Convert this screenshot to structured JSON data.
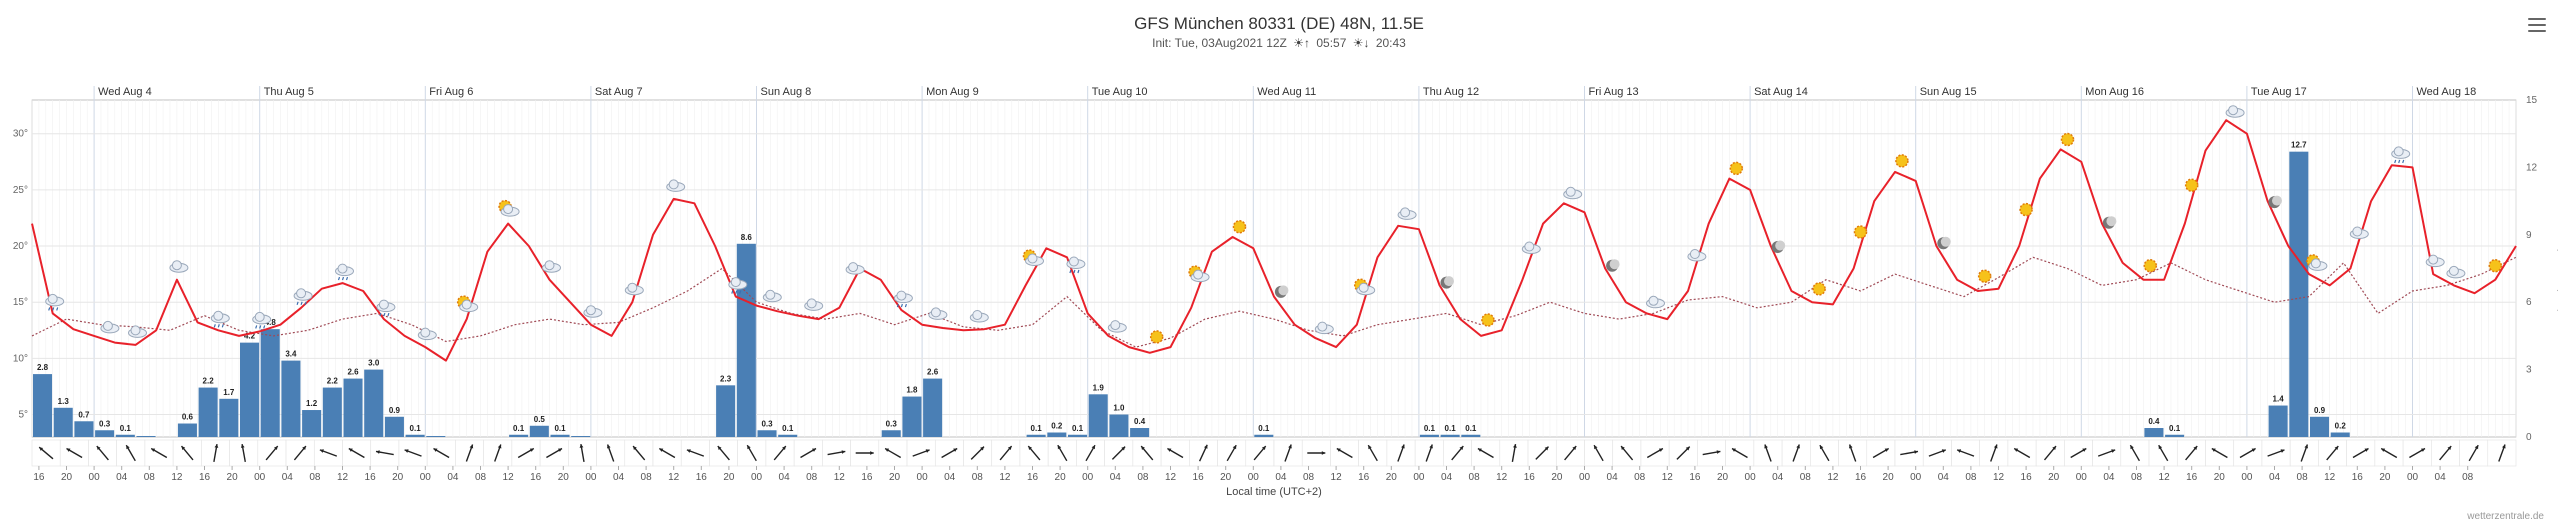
{
  "header": {
    "title": "GFS München 80331 (DE) 48N, 11.5E",
    "init_label": "Init: Tue, 03Aug2021 12Z",
    "sunrise": "05:57",
    "sunset": "20:43"
  },
  "credit": "wetterzentrale.de",
  "colors": {
    "temp": "#e8212a",
    "dewpoint": "#a04a55",
    "bar": "#4a7fb5",
    "grid": "#e6e6e6",
    "axis": "#999999"
  },
  "chart_data": {
    "type": "bar+line",
    "title": "GFS München 80331 (DE) 48N, 11.5E",
    "xlabel": "Local time (UTC+2)",
    "ylabel_right": "Precipitation (mm)",
    "temp_axis": {
      "min": 3,
      "max": 33,
      "ticks": [
        5,
        10,
        15,
        20,
        25,
        30
      ],
      "tick_labels": [
        "5°",
        "10°",
        "15°",
        "20°",
        "25°",
        "30°"
      ]
    },
    "precip_axis": {
      "min": 0,
      "max": 15,
      "ticks": [
        0,
        3,
        6,
        9,
        12,
        15
      ],
      "tick_labels": [
        "0",
        "3",
        "6",
        "9",
        "12",
        "15"
      ]
    },
    "x_start_hour": 15,
    "x_end_hour": 363,
    "hour_tick_labels": [
      "16",
      "20",
      "00",
      "04",
      "08",
      "12",
      "16",
      "20",
      "00",
      "04",
      "08",
      "12",
      "16",
      "20",
      "00",
      "04",
      "08",
      "12",
      "16",
      "20",
      "00",
      "04",
      "08",
      "12",
      "16",
      "20",
      "00",
      "04",
      "08",
      "12",
      "16",
      "20",
      "00",
      "04",
      "08",
      "12",
      "16",
      "20",
      "00",
      "04",
      "08",
      "12",
      "16",
      "20",
      "00",
      "04",
      "08",
      "12",
      "16",
      "20",
      "00",
      "04",
      "08",
      "12",
      "16",
      "20",
      "00",
      "04",
      "08",
      "12",
      "16",
      "20",
      "00",
      "04",
      "08",
      "12",
      "16",
      "20",
      "00",
      "04",
      "08",
      "12",
      "16",
      "20",
      "00",
      "04",
      "08",
      "12",
      "16",
      "20",
      "00",
      "04",
      "08",
      "12",
      "16",
      "20",
      "00",
      "04",
      "08"
    ],
    "day_labels": [
      "Wed Aug 4",
      "Thu Aug 5",
      "Fri Aug 6",
      "Sat Aug 7",
      "Sun Aug 8",
      "Mon Aug 9",
      "Tue Aug 10",
      "Wed Aug 11",
      "Thu Aug 12",
      "Fri Aug 13",
      "Sat Aug 14",
      "Sun Aug 15",
      "Mon Aug 16",
      "Tue Aug 17",
      "Wed Aug 18"
    ],
    "precip_labels": [
      {
        "h": 18,
        "v": 2.8,
        "label": "2.8"
      },
      {
        "h": 21,
        "v": 1.3,
        "label": "1.3"
      },
      {
        "h": 24,
        "v": 0.7,
        "label": "0.7"
      },
      {
        "h": 27,
        "v": 0.3,
        "label": "0.3"
      },
      {
        "h": 30,
        "v": 0.1,
        "label": "0.1"
      },
      {
        "h": 39,
        "v": 0.6,
        "label": "0.6"
      },
      {
        "h": 42,
        "v": 2.2,
        "label": "2.2"
      },
      {
        "h": 45,
        "v": 1.7,
        "label": "1.7"
      },
      {
        "h": 48,
        "v": 4.2,
        "label": "4.2"
      },
      {
        "h": 51,
        "v": 4.8,
        "label": "4.8"
      },
      {
        "h": 54,
        "v": 3.4,
        "label": "3.4"
      },
      {
        "h": 57,
        "v": 1.2,
        "label": "1.2"
      },
      {
        "h": 60,
        "v": 2.2,
        "label": "2.2"
      },
      {
        "h": 63,
        "v": 2.6,
        "label": "2.6"
      },
      {
        "h": 66,
        "v": 3.0,
        "label": "3.0"
      },
      {
        "h": 69,
        "v": 0.9,
        "label": "0.9"
      },
      {
        "h": 72,
        "v": 0.1,
        "label": "0.1"
      },
      {
        "h": 87,
        "v": 0.1,
        "label": "0.1"
      },
      {
        "h": 90,
        "v": 0.5,
        "label": "0.5"
      },
      {
        "h": 93,
        "v": 0.1,
        "label": "0.1"
      },
      {
        "h": 117,
        "v": 2.3,
        "label": "2.3"
      },
      {
        "h": 120,
        "v": 8.6,
        "label": "8.6"
      },
      {
        "h": 123,
        "v": 0.3,
        "label": "0.3"
      },
      {
        "h": 126,
        "v": 0.1,
        "label": "0.1"
      },
      {
        "h": 141,
        "v": 0.3,
        "label": "0.3"
      },
      {
        "h": 144,
        "v": 1.8,
        "label": "1.8"
      },
      {
        "h": 147,
        "v": 2.6,
        "label": "2.6"
      },
      {
        "h": 162,
        "v": 0.1,
        "label": "0.1"
      },
      {
        "h": 165,
        "v": 0.2,
        "label": "0.2"
      },
      {
        "h": 168,
        "v": 0.1,
        "label": "0.1"
      },
      {
        "h": 171,
        "v": 1.9,
        "label": "1.9"
      },
      {
        "h": 174,
        "v": 1.0,
        "label": "1.0"
      },
      {
        "h": 177,
        "v": 0.4,
        "label": "0.4"
      },
      {
        "h": 195,
        "v": 0.1,
        "label": "0.1"
      },
      {
        "h": 219,
        "v": 0.1,
        "label": "0.1"
      },
      {
        "h": 222,
        "v": 0.1,
        "label": "0.1"
      },
      {
        "h": 225,
        "v": 0.1,
        "label": "0.1"
      },
      {
        "h": 324,
        "v": 0.4,
        "label": "0.4"
      },
      {
        "h": 327,
        "v": 0.1,
        "label": "0.1"
      },
      {
        "h": 342,
        "v": 1.4,
        "label": "1.4"
      },
      {
        "h": 345,
        "v": 12.7,
        "label": "12.7"
      },
      {
        "h": 348,
        "v": 0.9,
        "label": "0.9"
      },
      {
        "h": 351,
        "v": 0.2,
        "label": "0.2"
      }
    ],
    "precip_extra": [
      {
        "h": 33,
        "v": 0.05
      },
      {
        "h": 75,
        "v": 0.05
      },
      {
        "h": 96,
        "v": 0.05
      }
    ],
    "temperature": [
      [
        15,
        22.0
      ],
      [
        18,
        14.0
      ],
      [
        21,
        12.6
      ],
      [
        24,
        12.0
      ],
      [
        27,
        11.4
      ],
      [
        30,
        11.2
      ],
      [
        33,
        12.5
      ],
      [
        36,
        17.0
      ],
      [
        39,
        13.2
      ],
      [
        42,
        12.5
      ],
      [
        45,
        12.0
      ],
      [
        48,
        12.4
      ],
      [
        51,
        13.0
      ],
      [
        54,
        14.5
      ],
      [
        57,
        16.2
      ],
      [
        60,
        16.7
      ],
      [
        63,
        16.0
      ],
      [
        66,
        13.5
      ],
      [
        69,
        12.0
      ],
      [
        72,
        11.0
      ],
      [
        75,
        9.8
      ],
      [
        78,
        13.5
      ],
      [
        81,
        19.5
      ],
      [
        84,
        22.0
      ],
      [
        87,
        20.0
      ],
      [
        90,
        17.0
      ],
      [
        93,
        15.0
      ],
      [
        96,
        13.0
      ],
      [
        99,
        12.0
      ],
      [
        102,
        15.0
      ],
      [
        105,
        21.0
      ],
      [
        108,
        24.2
      ],
      [
        111,
        23.8
      ],
      [
        114,
        20.0
      ],
      [
        117,
        15.5
      ],
      [
        120,
        14.7
      ],
      [
        123,
        14.2
      ],
      [
        126,
        13.8
      ],
      [
        129,
        13.5
      ],
      [
        132,
        14.5
      ],
      [
        135,
        18.0
      ],
      [
        138,
        17.0
      ],
      [
        141,
        14.3
      ],
      [
        144,
        13.0
      ],
      [
        147,
        12.7
      ],
      [
        150,
        12.5
      ],
      [
        153,
        12.6
      ],
      [
        156,
        13.0
      ],
      [
        159,
        16.5
      ],
      [
        162,
        19.8
      ],
      [
        165,
        19.0
      ],
      [
        168,
        14.0
      ],
      [
        171,
        12.0
      ],
      [
        174,
        11.0
      ],
      [
        177,
        10.5
      ],
      [
        180,
        11.0
      ],
      [
        183,
        14.5
      ],
      [
        186,
        19.5
      ],
      [
        189,
        20.8
      ],
      [
        192,
        19.8
      ],
      [
        195,
        15.5
      ],
      [
        198,
        13.0
      ],
      [
        201,
        11.8
      ],
      [
        204,
        11.0
      ],
      [
        207,
        13.0
      ],
      [
        210,
        19.0
      ],
      [
        213,
        21.8
      ],
      [
        216,
        21.5
      ],
      [
        219,
        16.5
      ],
      [
        222,
        13.5
      ],
      [
        225,
        12.0
      ],
      [
        228,
        12.5
      ],
      [
        231,
        17.0
      ],
      [
        234,
        22.0
      ],
      [
        237,
        23.8
      ],
      [
        240,
        23.0
      ],
      [
        243,
        18.0
      ],
      [
        246,
        15.0
      ],
      [
        249,
        14.0
      ],
      [
        252,
        13.5
      ],
      [
        255,
        16.0
      ],
      [
        258,
        22.0
      ],
      [
        261,
        26.0
      ],
      [
        264,
        25.0
      ],
      [
        267,
        20.0
      ],
      [
        270,
        16.0
      ],
      [
        273,
        15.0
      ],
      [
        276,
        14.8
      ],
      [
        279,
        18.0
      ],
      [
        282,
        24.0
      ],
      [
        285,
        26.6
      ],
      [
        288,
        25.8
      ],
      [
        291,
        20.0
      ],
      [
        294,
        17.0
      ],
      [
        297,
        16.0
      ],
      [
        300,
        16.2
      ],
      [
        303,
        20.0
      ],
      [
        306,
        26.0
      ],
      [
        309,
        28.6
      ],
      [
        312,
        27.5
      ],
      [
        315,
        22.0
      ],
      [
        318,
        18.5
      ],
      [
        321,
        17.0
      ],
      [
        324,
        17.0
      ],
      [
        327,
        22.0
      ],
      [
        330,
        28.5
      ],
      [
        333,
        31.2
      ],
      [
        336,
        30.0
      ],
      [
        339,
        24.0
      ],
      [
        342,
        20.0
      ],
      [
        345,
        17.5
      ],
      [
        348,
        16.5
      ],
      [
        351,
        18.0
      ],
      [
        354,
        24.0
      ],
      [
        357,
        27.2
      ],
      [
        360,
        27.0
      ],
      [
        363,
        17.5
      ],
      [
        366,
        16.5
      ],
      [
        369,
        15.8
      ],
      [
        372,
        17.0
      ],
      [
        375,
        20.0
      ]
    ],
    "dewpoint": [
      [
        15,
        12.0
      ],
      [
        20,
        13.5
      ],
      [
        25,
        13.0
      ],
      [
        30,
        12.8
      ],
      [
        35,
        12.5
      ],
      [
        40,
        13.8
      ],
      [
        45,
        12.5
      ],
      [
        50,
        12.0
      ],
      [
        55,
        12.5
      ],
      [
        60,
        13.5
      ],
      [
        65,
        14.0
      ],
      [
        70,
        13.0
      ],
      [
        75,
        11.5
      ],
      [
        80,
        12.0
      ],
      [
        85,
        13.0
      ],
      [
        90,
        13.5
      ],
      [
        95,
        13.0
      ],
      [
        100,
        13.2
      ],
      [
        105,
        14.5
      ],
      [
        110,
        16.0
      ],
      [
        115,
        18.0
      ],
      [
        120,
        15.0
      ],
      [
        125,
        14.0
      ],
      [
        130,
        13.5
      ],
      [
        135,
        14.0
      ],
      [
        140,
        13.0
      ],
      [
        145,
        14.0
      ],
      [
        150,
        12.8
      ],
      [
        155,
        12.5
      ],
      [
        160,
        13.0
      ],
      [
        165,
        15.5
      ],
      [
        170,
        12.5
      ],
      [
        175,
        11.0
      ],
      [
        180,
        11.8
      ],
      [
        185,
        13.5
      ],
      [
        190,
        14.2
      ],
      [
        195,
        13.5
      ],
      [
        200,
        12.5
      ],
      [
        205,
        12.0
      ],
      [
        210,
        13.0
      ],
      [
        215,
        13.5
      ],
      [
        220,
        14.0
      ],
      [
        225,
        13.0
      ],
      [
        230,
        13.8
      ],
      [
        235,
        15.0
      ],
      [
        240,
        14.0
      ],
      [
        245,
        13.5
      ],
      [
        250,
        14.0
      ],
      [
        255,
        15.2
      ],
      [
        260,
        15.5
      ],
      [
        265,
        14.5
      ],
      [
        270,
        15.0
      ],
      [
        275,
        17.0
      ],
      [
        280,
        16.0
      ],
      [
        285,
        17.5
      ],
      [
        290,
        16.5
      ],
      [
        295,
        15.5
      ],
      [
        300,
        17.2
      ],
      [
        305,
        19.0
      ],
      [
        310,
        18.0
      ],
      [
        315,
        16.5
      ],
      [
        320,
        17.0
      ],
      [
        325,
        18.5
      ],
      [
        330,
        17.0
      ],
      [
        335,
        16.0
      ],
      [
        340,
        15.0
      ],
      [
        345,
        15.5
      ],
      [
        350,
        18.5
      ],
      [
        355,
        14.0
      ],
      [
        360,
        16.0
      ],
      [
        365,
        16.5
      ],
      [
        370,
        17.5
      ],
      [
        375,
        19.0
      ]
    ]
  },
  "wx_icons": [
    {
      "h": 18,
      "kind": "rain"
    },
    {
      "h": 26,
      "kind": "cloud"
    },
    {
      "h": 30,
      "kind": "cloud"
    },
    {
      "h": 36,
      "kind": "cloud"
    },
    {
      "h": 42,
      "kind": "rain"
    },
    {
      "h": 48,
      "kind": "rain"
    },
    {
      "h": 54,
      "kind": "rain"
    },
    {
      "h": 60,
      "kind": "rain"
    },
    {
      "h": 66,
      "kind": "rain"
    },
    {
      "h": 72,
      "kind": "cloud"
    },
    {
      "h": 78,
      "kind": "suncloud"
    },
    {
      "h": 84,
      "kind": "suncloud"
    },
    {
      "h": 90,
      "kind": "cloud"
    },
    {
      "h": 96,
      "kind": "cloud"
    },
    {
      "h": 102,
      "kind": "cloud"
    },
    {
      "h": 108,
      "kind": "cloud"
    },
    {
      "h": 117,
      "kind": "rain"
    },
    {
      "h": 122,
      "kind": "cloud"
    },
    {
      "h": 128,
      "kind": "cloud"
    },
    {
      "h": 134,
      "kind": "cloud"
    },
    {
      "h": 141,
      "kind": "rain"
    },
    {
      "h": 146,
      "kind": "cloud"
    },
    {
      "h": 152,
      "kind": "cloud"
    },
    {
      "h": 160,
      "kind": "suncloud"
    },
    {
      "h": 166,
      "kind": "rain"
    },
    {
      "h": 172,
      "kind": "cloud"
    },
    {
      "h": 178,
      "kind": "sun"
    },
    {
      "h": 184,
      "kind": "suncloud"
    },
    {
      "h": 190,
      "kind": "sun"
    },
    {
      "h": 196,
      "kind": "moon"
    },
    {
      "h": 202,
      "kind": "cloud"
    },
    {
      "h": 208,
      "kind": "suncloud"
    },
    {
      "h": 214,
      "kind": "cloud"
    },
    {
      "h": 220,
      "kind": "moon"
    },
    {
      "h": 226,
      "kind": "sun"
    },
    {
      "h": 232,
      "kind": "cloud"
    },
    {
      "h": 238,
      "kind": "cloud"
    },
    {
      "h": 244,
      "kind": "moon"
    },
    {
      "h": 250,
      "kind": "cloud"
    },
    {
      "h": 256,
      "kind": "cloud"
    },
    {
      "h": 262,
      "kind": "sun"
    },
    {
      "h": 268,
      "kind": "moon"
    },
    {
      "h": 274,
      "kind": "sun"
    },
    {
      "h": 280,
      "kind": "sun"
    },
    {
      "h": 286,
      "kind": "sun"
    },
    {
      "h": 292,
      "kind": "moon"
    },
    {
      "h": 298,
      "kind": "sun"
    },
    {
      "h": 304,
      "kind": "sun"
    },
    {
      "h": 310,
      "kind": "sun"
    },
    {
      "h": 316,
      "kind": "moon"
    },
    {
      "h": 322,
      "kind": "sun"
    },
    {
      "h": 328,
      "kind": "sun"
    },
    {
      "h": 334,
      "kind": "cloud"
    },
    {
      "h": 340,
      "kind": "moon"
    },
    {
      "h": 346,
      "kind": "suncloud"
    },
    {
      "h": 352,
      "kind": "cloud"
    },
    {
      "h": 358,
      "kind": "rain"
    },
    {
      "h": 363,
      "kind": "cloud"
    },
    {
      "h": 366,
      "kind": "cloud"
    },
    {
      "h": 372,
      "kind": "sun"
    }
  ],
  "wind_dirs": [
    310,
    300,
    320,
    330,
    300,
    320,
    10,
    350,
    40,
    40,
    290,
    300,
    280,
    290,
    300,
    20,
    20,
    60,
    60,
    350,
    340,
    320,
    300,
    290,
    320,
    330,
    40,
    60,
    80,
    90,
    300,
    70,
    60,
    45,
    40,
    320,
    330,
    30,
    45,
    320,
    300,
    25,
    30,
    40,
    20,
    90,
    300,
    330,
    20,
    20,
    40,
    300,
    10,
    45,
    40,
    330,
    320,
    60,
    45,
    80,
    300,
    340,
    20,
    330,
    340,
    60,
    80,
    70,
    290,
    20,
    300,
    40,
    60,
    70,
    330,
    330,
    40,
    300,
    60,
    70,
    20,
    40,
    60,
    300,
    60,
    40,
    30,
    20
  ],
  "x_axis_label": "Local time (UTC+2)"
}
